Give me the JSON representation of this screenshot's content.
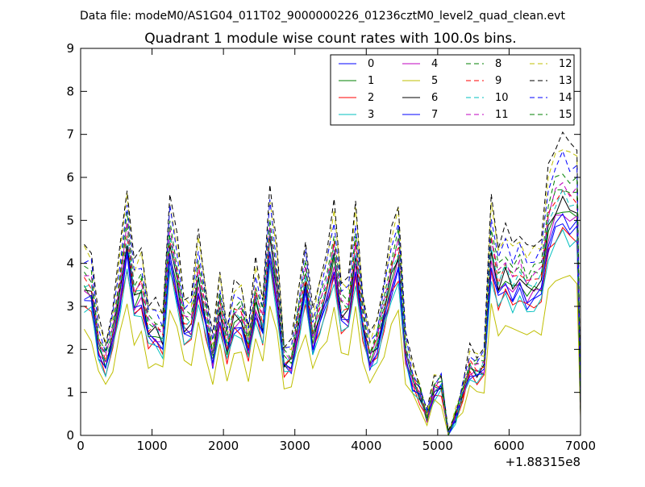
{
  "header": {
    "datafile_text": "Data file: modeM0/AS1G04_011T02_9000000226_01236cztM0_level2_quad_clean.evt"
  },
  "chart_data": {
    "type": "line",
    "title": "Quadrant 1 module wise count rates with 100.0s bins.",
    "xlabel": "",
    "ylabel": "",
    "xlim": [
      0,
      7000
    ],
    "ylim": [
      0,
      9
    ],
    "x_ticks": [
      0,
      1000,
      2000,
      3000,
      4000,
      5000,
      6000,
      7000
    ],
    "y_ticks": [
      0,
      1,
      2,
      3,
      4,
      5,
      6,
      7,
      8,
      9
    ],
    "x_tick_labels": [
      "0",
      "1000",
      "2000",
      "3000",
      "4000",
      "5000",
      "6000",
      "7000"
    ],
    "y_tick_labels": [
      "0",
      "1",
      "2",
      "3",
      "4",
      "5",
      "6",
      "7",
      "8",
      "9"
    ],
    "x_offset_label": "+1.88315e8",
    "grid": false,
    "legend_position": "top-right",
    "legend_columns": 4,
    "x": [
      50,
      150,
      250,
      350,
      450,
      550,
      650,
      750,
      850,
      950,
      1050,
      1150,
      1250,
      1350,
      1450,
      1550,
      1650,
      1750,
      1850,
      1950,
      2050,
      2150,
      2250,
      2350,
      2450,
      2550,
      2650,
      2750,
      2850,
      2950,
      3050,
      3150,
      3250,
      3350,
      3450,
      3550,
      3650,
      3750,
      3850,
      3950,
      4050,
      4150,
      4250,
      4350,
      4450,
      4550,
      4650,
      4750,
      4850,
      4950,
      5050,
      5150,
      5250,
      5350,
      5450,
      5550,
      5650,
      5750,
      5850,
      5950,
      6050,
      6150,
      6250,
      6350,
      6450,
      6550,
      6650,
      6750,
      6850,
      6950,
      7000
    ],
    "base_profile": [
      3.3,
      3.2,
      2.0,
      1.6,
      2.2,
      3.2,
      4.3,
      3.0,
      3.2,
      2.3,
      2.3,
      2.1,
      4.2,
      3.4,
      2.4,
      2.4,
      3.5,
      2.6,
      1.7,
      2.8,
      1.9,
      2.6,
      2.6,
      1.9,
      3.0,
      2.4,
      4.3,
      3.2,
      1.6,
      1.6,
      2.5,
      3.4,
      2.1,
      2.7,
      3.2,
      4.0,
      2.7,
      2.7,
      4.0,
      2.5,
      1.7,
      2.0,
      2.7,
      3.5,
      4.0,
      1.8,
      1.2,
      0.9,
      0.4,
      1.0,
      1.1,
      0.0,
      0.4,
      0.9,
      1.5,
      1.4,
      1.5,
      4.1,
      3.3,
      3.6,
      3.3,
      3.5,
      3.2,
      3.3,
      3.4,
      4.6,
      5.0,
      5.2,
      5.0,
      5.0,
      0.6
    ],
    "series": [
      {
        "name": "0",
        "color": "#0000ff",
        "style": "solid",
        "scale": 0.95
      },
      {
        "name": "1",
        "color": "#008000",
        "style": "solid",
        "scale": 1.02
      },
      {
        "name": "2",
        "color": "#ff0000",
        "style": "solid",
        "scale": 0.92
      },
      {
        "name": "3",
        "color": "#00bfbf",
        "style": "solid",
        "scale": 0.9
      },
      {
        "name": "4",
        "color": "#bf00bf",
        "style": "solid",
        "scale": 1.0
      },
      {
        "name": "5",
        "color": "#bfbf00",
        "style": "solid",
        "scale": 0.72
      },
      {
        "name": "6",
        "color": "#000000",
        "style": "solid",
        "scale": 1.05
      },
      {
        "name": "7",
        "color": "#0000ff",
        "style": "solid",
        "scale": 0.98
      },
      {
        "name": "8",
        "color": "#008000",
        "style": "dashed",
        "scale": 1.12
      },
      {
        "name": "9",
        "color": "#ff0000",
        "style": "dashed",
        "scale": 1.1
      },
      {
        "name": "10",
        "color": "#00bfbf",
        "style": "dashed",
        "scale": 1.08
      },
      {
        "name": "11",
        "color": "#bf00bf",
        "style": "dashed",
        "scale": 1.13
      },
      {
        "name": "12",
        "color": "#bfbf00",
        "style": "dashed",
        "scale": 1.3
      },
      {
        "name": "13",
        "color": "#000000",
        "style": "dashed",
        "scale": 1.35
      },
      {
        "name": "14",
        "color": "#0000ff",
        "style": "dashed",
        "scale": 1.25
      },
      {
        "name": "15",
        "color": "#008000",
        "style": "dashed",
        "scale": 1.18
      }
    ]
  }
}
